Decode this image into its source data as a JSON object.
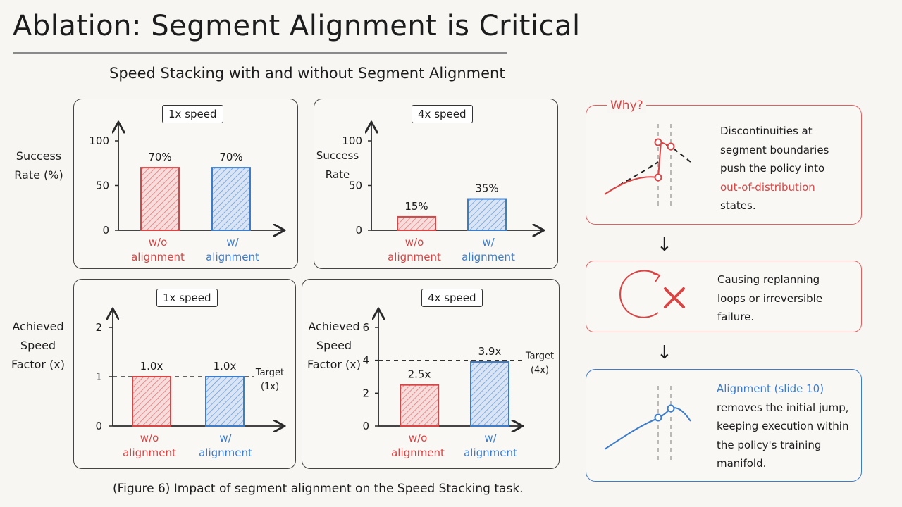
{
  "title": "Ablation: Segment Alignment is Critical",
  "subtitle": "Speed Stacking with and without Segment Alignment",
  "caption": "(Figure 6) Impact of segment alignment on the Speed Stacking task.",
  "colors": {
    "red": "#d94545",
    "blue": "#3d7cc9",
    "dark": "#1c1c1c"
  },
  "chart_data": [
    {
      "type": "bar",
      "title": "1x speed",
      "ylabel_lines": [
        "Success",
        "Rate (%)"
      ],
      "categories": [
        [
          "w/o",
          "alignment"
        ],
        [
          "w/",
          "alignment"
        ]
      ],
      "values": [
        70,
        70
      ],
      "data_labels": [
        "70%",
        "70%"
      ],
      "ylim": [
        0,
        100
      ],
      "yticks": [
        "0",
        "50",
        "100"
      ]
    },
    {
      "type": "bar",
      "title": "4x speed",
      "ylabel_lines": [
        "Success",
        "Rate"
      ],
      "categories": [
        [
          "w/o",
          "alignment"
        ],
        [
          "w/",
          "alignment"
        ]
      ],
      "values": [
        15,
        35
      ],
      "data_labels": [
        "15%",
        "35%"
      ],
      "ylim": [
        0,
        100
      ],
      "yticks": [
        "0",
        "50",
        "100"
      ]
    },
    {
      "type": "bar",
      "title": "1x speed",
      "ylabel_lines": [
        "Achieved",
        "Speed",
        "Factor (x)"
      ],
      "categories": [
        [
          "w/o",
          "alignment"
        ],
        [
          "w/",
          "alignment"
        ]
      ],
      "values": [
        1.0,
        1.0
      ],
      "data_labels": [
        "1.0x",
        "1.0x"
      ],
      "ylim": [
        0,
        2
      ],
      "yticks": [
        "0",
        "1",
        "2"
      ],
      "target": {
        "value": 1,
        "label_lines": [
          "Target",
          "(1x)"
        ]
      }
    },
    {
      "type": "bar",
      "title": "4x speed",
      "ylabel_lines": [
        "Achieved",
        "Speed",
        "Factor (x)"
      ],
      "categories": [
        [
          "w/o",
          "alignment"
        ],
        [
          "w/",
          "alignment"
        ]
      ],
      "values": [
        2.5,
        3.9
      ],
      "data_labels": [
        "2.5x",
        "3.9x"
      ],
      "ylim": [
        0,
        6
      ],
      "yticks": [
        "0",
        "2",
        "4",
        "6"
      ],
      "target": {
        "value": 4,
        "label_lines": [
          "Target",
          "(4x)"
        ]
      }
    }
  ],
  "why": {
    "label": "Why?",
    "lines": [
      "Discontinuities at",
      "segment boundaries",
      "push the policy into"
    ],
    "highlight": "out-of-distribution",
    "last": "states."
  },
  "loop": {
    "lines": [
      "Causing replanning",
      "loops or irreversible",
      "failure."
    ],
    "icon": "x-mark-icon"
  },
  "alignment": {
    "highlight": "Alignment (slide 10)",
    "lines": [
      "removes the initial jump,",
      "keeping execution within",
      "the policy's training",
      "manifold."
    ]
  }
}
